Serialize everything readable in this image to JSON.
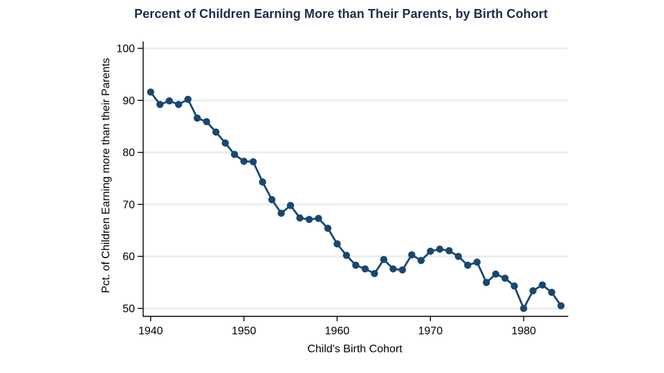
{
  "page": {
    "background": "#ffffff"
  },
  "chart_data": {
    "type": "line",
    "title": "Percent of Children Earning More than Their Parents, by Birth Cohort",
    "xlabel": "Child's Birth Cohort",
    "ylabel": "Pct. of Children Earning more than their Parents",
    "legend": "none",
    "grid": "horizontal",
    "xlim": [
      1939.2,
      1984.7
    ],
    "ylim": [
      50,
      100
    ],
    "xticks": [
      1940,
      1950,
      1960,
      1970,
      1980
    ],
    "yticks": [
      50,
      60,
      70,
      80,
      90,
      100
    ],
    "x": [
      1940,
      1941,
      1942,
      1943,
      1944,
      1945,
      1946,
      1947,
      1948,
      1949,
      1950,
      1951,
      1952,
      1953,
      1954,
      1955,
      1956,
      1957,
      1958,
      1959,
      1960,
      1961,
      1962,
      1963,
      1964,
      1965,
      1966,
      1967,
      1968,
      1969,
      1970,
      1971,
      1972,
      1973,
      1974,
      1975,
      1976,
      1977,
      1978,
      1979,
      1980,
      1981,
      1982,
      1983,
      1984
    ],
    "values": [
      91.6,
      89.2,
      89.9,
      89.2,
      90.2,
      86.6,
      85.9,
      83.9,
      81.8,
      79.6,
      78.3,
      78.2,
      74.3,
      70.9,
      68.3,
      69.8,
      67.4,
      67.1,
      67.3,
      65.4,
      62.4,
      60.2,
      58.3,
      57.6,
      56.7,
      59.4,
      57.6,
      57.4,
      60.3,
      59.2,
      61.0,
      61.4,
      61.1,
      60.0,
      58.3,
      58.9,
      55.0,
      56.6,
      55.8,
      54.3,
      50.0,
      53.4,
      54.5,
      53.1,
      50.5
    ],
    "colors": {
      "line": "#1a476f",
      "marker": "#1a476f",
      "grid": "#e8eeec",
      "title": "#202c4c",
      "axis": "#000000",
      "tick_text": "#000000",
      "background": "#ffffff"
    }
  }
}
